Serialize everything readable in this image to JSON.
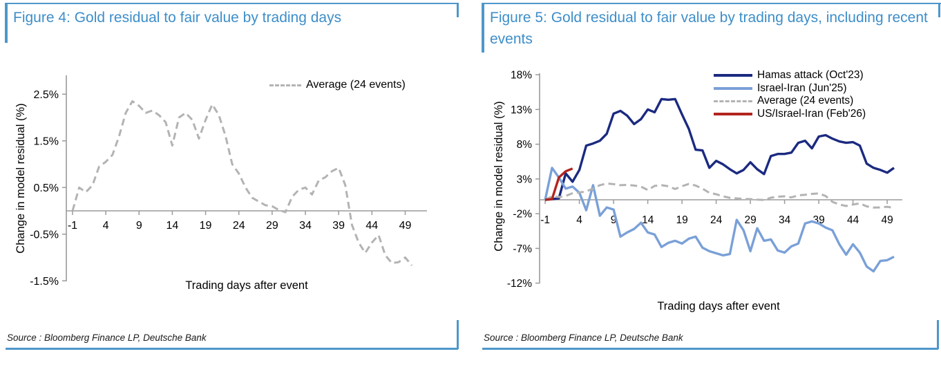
{
  "panels": [
    {
      "title": "Figure 4: Gold residual to fair value by trading days",
      "source": "Source : Bloomberg Finance LP, Deutsche Bank"
    },
    {
      "title": "Figure 5: Gold residual to fair value by trading days, including recent events",
      "source": "Source : Bloomberg Finance LP, Deutsche Bank"
    }
  ],
  "colors": {
    "title_blue": "#3d8ec9",
    "rule_blue": "#4d97cb",
    "axis_gray": "#9a9a9a",
    "average_gray": "#b3b3b3",
    "hamas_navy": "#1b2a80",
    "israel_iran_blue": "#7aa0d8",
    "us_israel_iran_red": "#b2241e"
  },
  "chart_data": [
    {
      "type": "line",
      "title": "Figure 4: Gold residual to fair value by trading days",
      "xlabel": "Trading days after event",
      "ylabel": "Change in model residual (%)",
      "grid": false,
      "legend_position": "top-right-inside",
      "xlim": [
        -2,
        51.5
      ],
      "ylim": [
        -1.8,
        2.9
      ],
      "xticks": [
        -1,
        4,
        9,
        14,
        19,
        24,
        29,
        34,
        39,
        44,
        49
      ],
      "yticks": [
        2.5,
        1.5,
        0.5,
        -0.5,
        -1.5
      ],
      "ytick_labels": [
        "2.5%",
        "1.5%",
        "0.5%",
        "-0.5%",
        "-1.5%"
      ],
      "x": [
        -1,
        0,
        1,
        2,
        3,
        4,
        5,
        6,
        7,
        8,
        9,
        10,
        11,
        12,
        13,
        14,
        15,
        16,
        17,
        18,
        19,
        20,
        21,
        22,
        23,
        24,
        25,
        26,
        27,
        28,
        29,
        30,
        31,
        32,
        33,
        34,
        35,
        36,
        37,
        38,
        39,
        40,
        41,
        42,
        43,
        44,
        45,
        46,
        47,
        48,
        49,
        50
      ],
      "series": [
        {
          "name": "Average (24 events)",
          "color": "#b3b3b3",
          "style": "dashed",
          "values": [
            0.0,
            0.5,
            0.4,
            0.55,
            0.95,
            1.05,
            1.2,
            1.6,
            2.1,
            2.35,
            2.25,
            2.1,
            2.15,
            2.05,
            1.9,
            1.4,
            2.0,
            2.1,
            1.95,
            1.55,
            1.95,
            2.28,
            2.05,
            1.6,
            1.0,
            0.8,
            0.5,
            0.28,
            0.2,
            0.12,
            0.1,
            0.02,
            -0.03,
            0.3,
            0.45,
            0.5,
            0.35,
            0.65,
            0.72,
            0.85,
            0.92,
            0.55,
            -0.3,
            -0.68,
            -0.9,
            -0.68,
            -0.52,
            -0.95,
            -1.12,
            -1.1,
            -1.0,
            -1.17
          ]
        }
      ]
    },
    {
      "type": "line",
      "title": "Figure 5: Gold residual to fair value by trading days, including recent events",
      "xlabel": "Trading days after event",
      "ylabel": "Change in model residual (%)",
      "grid": false,
      "legend_position": "top-right-inside",
      "xlim": [
        -2,
        51.5
      ],
      "ylim": [
        -12,
        18
      ],
      "xticks": [
        -1,
        4,
        9,
        14,
        19,
        24,
        29,
        34,
        39,
        44,
        49
      ],
      "yticks": [
        18,
        13,
        8,
        3,
        -2,
        -7,
        -12
      ],
      "ytick_labels": [
        "18%",
        "13%",
        "8%",
        "3%",
        "-2%",
        "-7%",
        "-12%"
      ],
      "x": [
        -1,
        0,
        1,
        2,
        3,
        4,
        5,
        6,
        7,
        8,
        9,
        10,
        11,
        12,
        13,
        14,
        15,
        16,
        17,
        18,
        19,
        20,
        21,
        22,
        23,
        24,
        25,
        26,
        27,
        28,
        29,
        30,
        31,
        32,
        33,
        34,
        35,
        36,
        37,
        38,
        39,
        40,
        41,
        42,
        43,
        44,
        45,
        46,
        47,
        48,
        49,
        50
      ],
      "series": [
        {
          "name": "Hamas attack (Oct'23)",
          "color": "#1b2a80",
          "style": "solid",
          "values": [
            0.0,
            0.1,
            0.2,
            3.8,
            2.6,
            4.3,
            7.8,
            8.1,
            8.5,
            9.5,
            12.4,
            12.8,
            12.1,
            10.9,
            11.6,
            13.0,
            12.6,
            14.5,
            14.4,
            14.5,
            12.3,
            10.2,
            7.2,
            7.1,
            4.6,
            5.6,
            5.1,
            4.4,
            3.8,
            4.3,
            5.4,
            4.4,
            3.7,
            6.3,
            6.6,
            6.6,
            6.8,
            8.2,
            8.5,
            7.4,
            9.1,
            9.3,
            8.8,
            8.4,
            8.2,
            8.3,
            7.8,
            5.2,
            4.6,
            4.3,
            3.9,
            4.6
          ]
        },
        {
          "name": "Israel-Iran (Jun'25)",
          "color": "#7aa0d8",
          "style": "solid",
          "values": [
            0.0,
            4.6,
            3.2,
            1.6,
            1.9,
            1.0,
            -1.5,
            2.1,
            -2.3,
            -1.1,
            -1.4,
            -5.3,
            -4.7,
            -4.2,
            -3.3,
            -4.7,
            -5.0,
            -6.8,
            -6.2,
            -5.9,
            -6.3,
            -5.6,
            -5.3,
            -6.9,
            -7.4,
            -7.7,
            -8.0,
            -7.8,
            -2.9,
            -4.4,
            -7.4,
            -4.1,
            -5.9,
            -5.7,
            -7.3,
            -7.6,
            -6.7,
            -6.3,
            -3.4,
            -3.1,
            -3.4,
            -4.0,
            -4.4,
            -6.4,
            -7.9,
            -6.4,
            -7.6,
            -9.6,
            -10.3,
            -8.8,
            -8.7,
            -8.2
          ]
        },
        {
          "name": "Average (24 events)",
          "color": "#b3b3b3",
          "style": "dashed",
          "values": [
            0.0,
            0.5,
            0.4,
            0.55,
            0.95,
            1.05,
            1.2,
            1.6,
            2.1,
            2.35,
            2.25,
            2.1,
            2.15,
            2.05,
            1.9,
            1.4,
            2.0,
            2.1,
            1.95,
            1.55,
            1.95,
            2.28,
            2.05,
            1.6,
            1.0,
            0.8,
            0.5,
            0.28,
            0.2,
            0.12,
            0.1,
            0.02,
            -0.03,
            0.3,
            0.45,
            0.5,
            0.35,
            0.65,
            0.72,
            0.85,
            0.92,
            0.55,
            -0.3,
            -0.68,
            -0.9,
            -0.68,
            -0.52,
            -0.95,
            -1.12,
            -1.1,
            -1.0,
            -1.17
          ]
        },
        {
          "name": "US/Israel-Iran (Feb'26)",
          "color": "#b2241e",
          "style": "solid",
          "values": [
            0.0,
            0.1,
            3.2,
            4.1,
            4.5
          ]
        }
      ]
    }
  ]
}
